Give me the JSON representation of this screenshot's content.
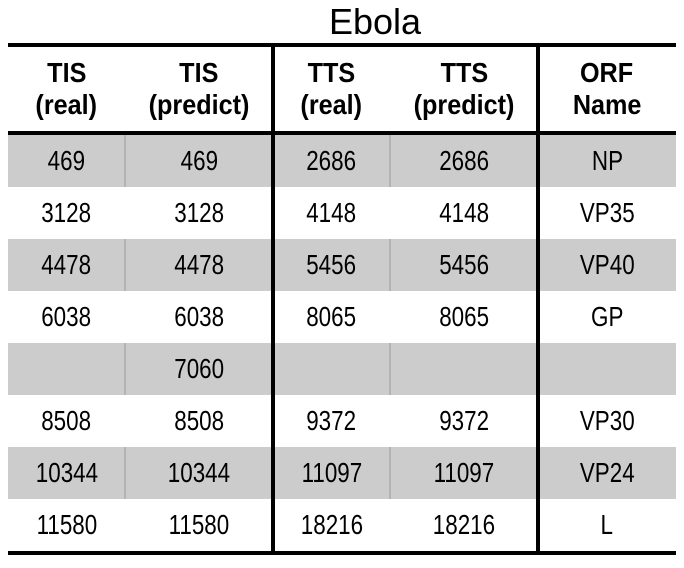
{
  "title": "Ebola",
  "colors": {
    "shaded_row_bg": "#cccccc",
    "shaded_separator": "#b3b3b3",
    "border": "#000000",
    "text": "#000000",
    "background": "#ffffff"
  },
  "table": {
    "headers": [
      {
        "line1": "TIS",
        "line2": "(real)"
      },
      {
        "line1": "TIS",
        "line2": "(predict)"
      },
      {
        "line1": "TTS",
        "line2": "(real)"
      },
      {
        "line1": "TTS",
        "line2": "(predict)"
      },
      {
        "line1": "ORF",
        "line2": "Name"
      }
    ],
    "rows": [
      {
        "cells": [
          "469",
          "469",
          "2686",
          "2686",
          "NP"
        ]
      },
      {
        "cells": [
          "3128",
          "3128",
          "4148",
          "4148",
          "VP35"
        ]
      },
      {
        "cells": [
          "4478",
          "4478",
          "5456",
          "5456",
          "VP40"
        ]
      },
      {
        "cells": [
          "6038",
          "6038",
          "8065",
          "8065",
          "GP"
        ]
      },
      {
        "cells": [
          "",
          "7060",
          "",
          "",
          ""
        ]
      },
      {
        "cells": [
          "8508",
          "8508",
          "9372",
          "9372",
          "VP30"
        ]
      },
      {
        "cells": [
          "10344",
          "10344",
          "11097",
          "11097",
          "VP24"
        ]
      },
      {
        "cells": [
          "11580",
          "11580",
          "18216",
          "18216",
          "L"
        ]
      }
    ]
  }
}
